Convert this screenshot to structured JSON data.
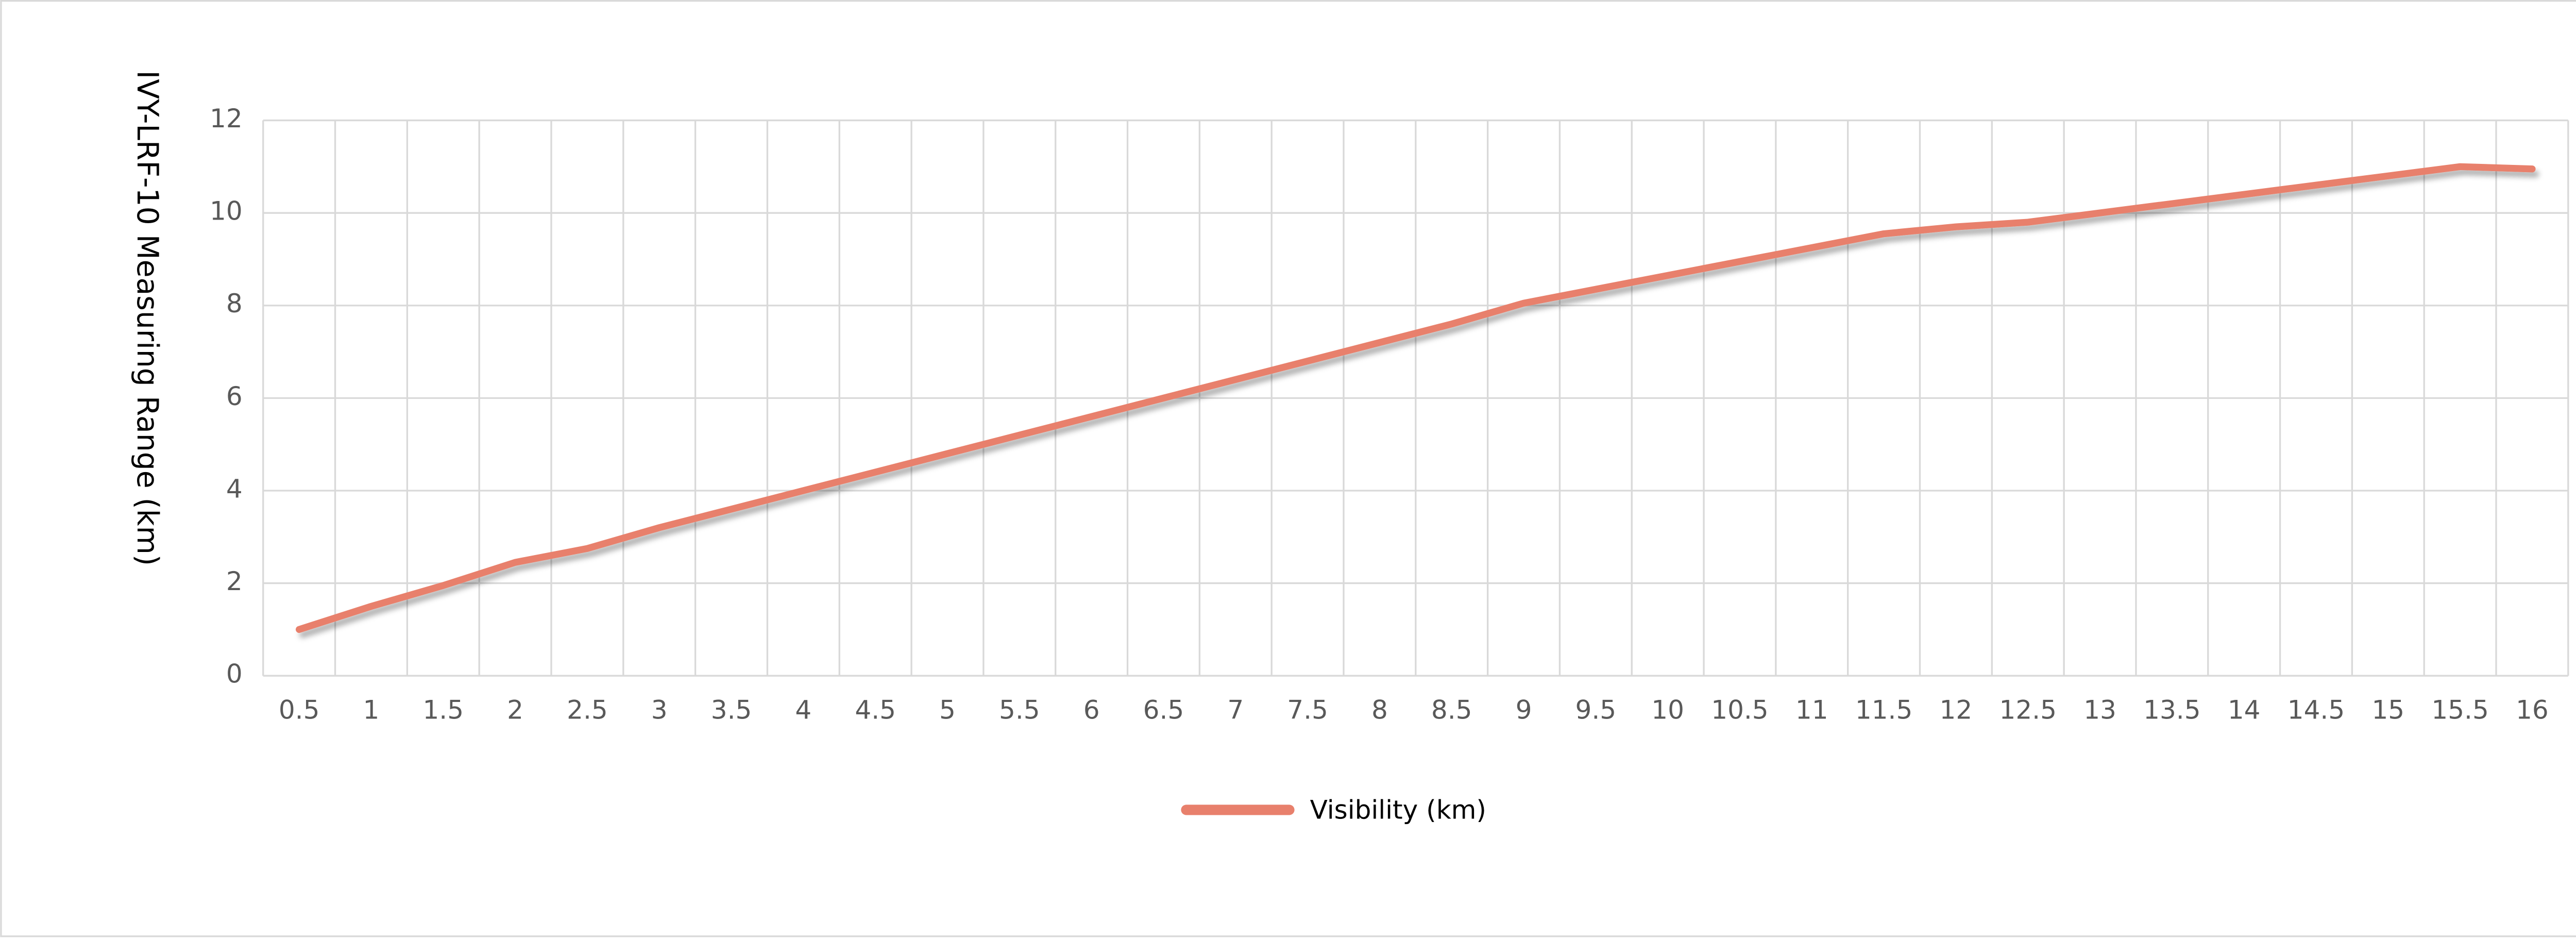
{
  "chart_data": {
    "type": "line",
    "y_label": "IVY-LRF-10 Measuring Range (km)",
    "categories": [
      "0.5",
      "1",
      "1.5",
      "2",
      "2.5",
      "3",
      "3.5",
      "4",
      "4.5",
      "5",
      "5.5",
      "6",
      "6.5",
      "7",
      "7.5",
      "8",
      "8.5",
      "9",
      "9.5",
      "10",
      "10.5",
      "11",
      "11.5",
      "12",
      "12.5",
      "13",
      "13.5",
      "14",
      "14.5",
      "15",
      "15.5",
      "16"
    ],
    "series": [
      {
        "name": "Visibility (km)",
        "color": "#e8806c",
        "values": [
          1,
          1.5,
          1.95,
          2.45,
          2.75,
          3.2,
          3.6,
          4.0,
          4.4,
          4.8,
          5.2,
          5.6,
          6.0,
          6.4,
          6.8,
          7.2,
          7.6,
          8.05,
          8.35,
          8.65,
          8.95,
          9.25,
          9.55,
          9.7,
          9.8,
          10.0,
          10.2,
          10.4,
          10.6,
          10.8,
          11.0,
          10.95
        ]
      }
    ],
    "ylim": [
      0,
      12
    ],
    "yticks": [
      0,
      2,
      4,
      6,
      8,
      10,
      12
    ],
    "grid": true,
    "legend": "bottom"
  }
}
